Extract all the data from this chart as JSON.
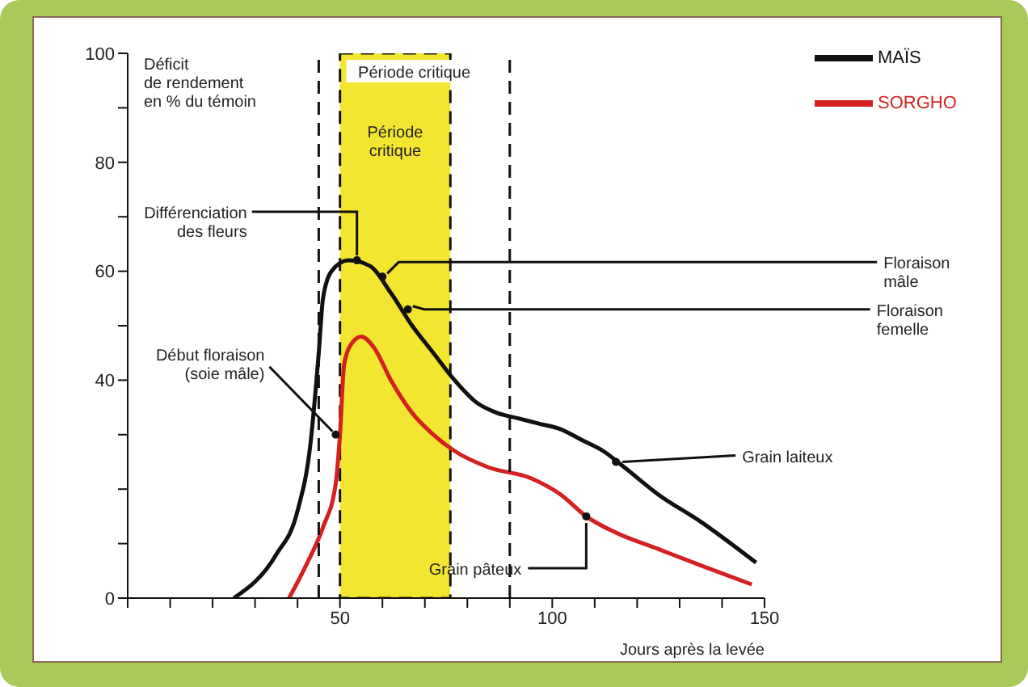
{
  "chart_data": {
    "type": "line",
    "ylabel": "Déficit\nde rendement\nen % du témoin",
    "xlabel": "Jours après la levée",
    "xlim": [
      0,
      150
    ],
    "ylim": [
      0,
      100
    ],
    "xticks": [
      {
        "value": 0,
        "label": null
      },
      {
        "value": 10,
        "label": null
      },
      {
        "value": 20,
        "label": null
      },
      {
        "value": 30,
        "label": null
      },
      {
        "value": 40,
        "label": null
      },
      50,
      {
        "value": 60,
        "label": null
      },
      {
        "value": 70,
        "label": null
      },
      {
        "value": 80,
        "label": null
      },
      {
        "value": 90,
        "label": null
      },
      100,
      {
        "value": 110,
        "label": null
      },
      {
        "value": 120,
        "label": null
      },
      {
        "value": 130,
        "label": null
      },
      {
        "value": 140,
        "label": null
      },
      150
    ],
    "yticks": [
      0,
      {
        "value": 10,
        "label": null
      },
      {
        "value": 20,
        "label": null
      },
      {
        "value": 30,
        "label": null
      },
      40,
      {
        "value": 50,
        "label": null
      },
      60,
      {
        "value": 70,
        "label": null
      },
      80,
      {
        "value": 90,
        "label": null
      },
      100
    ],
    "series": [
      {
        "name": "MAÏS",
        "color": "#111111",
        "x": [
          25,
          35,
          40,
          43,
          45,
          46,
          48,
          52,
          57,
          62,
          67,
          72,
          77,
          82,
          87,
          92,
          97,
          102,
          107,
          112,
          117,
          125,
          135,
          148
        ],
        "values": [
          0,
          8,
          16,
          28,
          45,
          55,
          60,
          62,
          61,
          56,
          50,
          45,
          40,
          36,
          34,
          33,
          32,
          31,
          29,
          27,
          24,
          19,
          14,
          6.5
        ]
      },
      {
        "name": "SORGHO",
        "color": "#d42020",
        "x": [
          38,
          42,
          46,
          49,
          50,
          51,
          53,
          55,
          58,
          62,
          67,
          72,
          77,
          85,
          95,
          102,
          108,
          115,
          125,
          135,
          147
        ],
        "values": [
          0,
          6,
          13,
          21,
          30,
          43,
          47,
          48,
          46,
          40,
          34,
          30,
          27,
          24,
          22,
          19,
          15,
          12,
          9,
          6,
          2.5
        ]
      }
    ],
    "ref_lines": [
      {
        "axis": "x",
        "value": 45,
        "line_style": "dashed"
      },
      {
        "axis": "x",
        "value": 90,
        "line_style": "dashed"
      }
    ],
    "bands": [
      {
        "axis": "x",
        "from": 50,
        "to": 76,
        "label": "Période\ncritique",
        "color": "#f2e630"
      }
    ],
    "annotations": [
      {
        "text": "Différenciation\ndes fleurs",
        "x": 54,
        "y": 62
      },
      {
        "text": "Floraison\nmâle",
        "x": 60,
        "y": 59
      },
      {
        "text": "Floraison\nfemelle",
        "x": 66,
        "y": 53
      },
      {
        "text": "Début floraison\n(soie mâle)",
        "x": 49,
        "y": 30
      },
      {
        "text": "Grain laiteux",
        "x": 115,
        "y": 25
      },
      {
        "text": "Grain pâteux",
        "x": 108,
        "y": 15
      },
      "Période critique"
    ],
    "legend": "top right",
    "marker": "none",
    "line_style": "solid",
    "grid": false
  }
}
